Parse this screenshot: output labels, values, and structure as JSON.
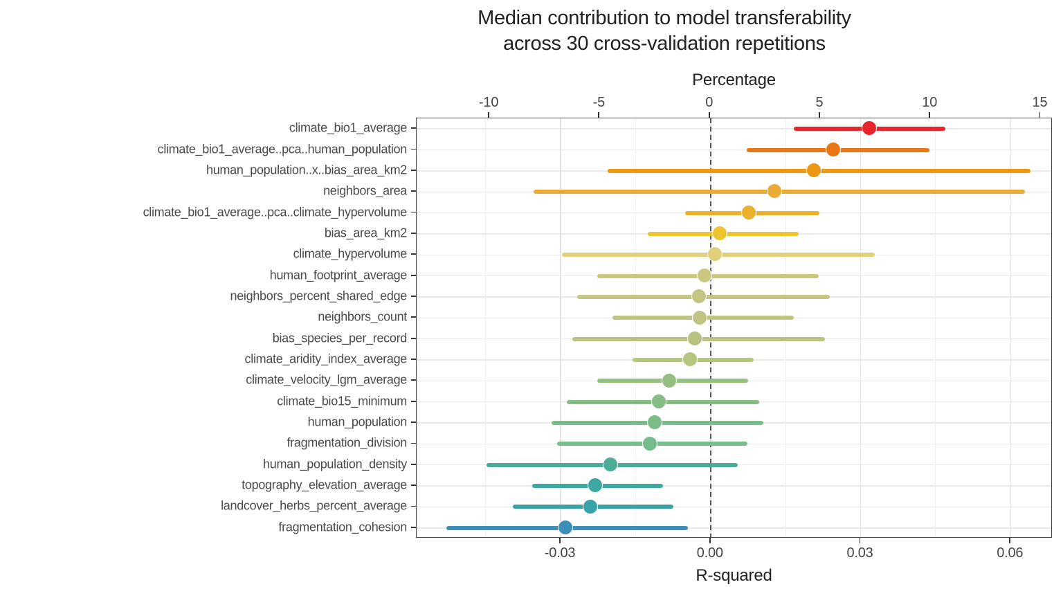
{
  "title": {
    "line1": "Median contribution to model transferability",
    "line2": "across 30 cross-validation repetitions"
  },
  "chart_data": {
    "type": "scatter",
    "subtype": "dot-with-horizontal-errorbar",
    "title": "Median contribution to model transferability across 30 cross-validation repetitions",
    "top_axis": {
      "label": "Percentage",
      "tick_labels": [
        "-10",
        "-5",
        "0",
        "5",
        "10",
        "15"
      ],
      "tick_values": [
        -10,
        -5,
        0,
        5,
        10,
        15
      ],
      "lim": [
        -13.3,
        15.55
      ]
    },
    "bottom_axis": {
      "label": "R-squared",
      "tick_labels": [
        "-0.03",
        "0.00",
        "0.03",
        "0.06"
      ],
      "tick_values": [
        -0.03,
        0,
        0.03,
        0.06
      ],
      "minor_tick_values": [
        -0.045,
        -0.015,
        0.015,
        0.045
      ],
      "lim": [
        -0.0588,
        0.0684
      ]
    },
    "zero_reference_line": 0,
    "grid": "on",
    "legend": "none",
    "series": [
      {
        "label": "climate_bio1_average",
        "median": 0.0319,
        "low": 0.0167,
        "high": 0.047,
        "color": "#E8252C"
      },
      {
        "label": "climate_bio1_average..pca..human_population",
        "median": 0.0246,
        "low": 0.0072,
        "high": 0.0437,
        "color": "#EA7713"
      },
      {
        "label": "human_population..x..bias_area_km2",
        "median": 0.0207,
        "low": -0.0206,
        "high": 0.064,
        "color": "#EC9815"
      },
      {
        "label": "neighbors_area",
        "median": 0.0129,
        "low": -0.0354,
        "high": 0.0628,
        "color": "#EAAB35"
      },
      {
        "label": "climate_bio1_average..pca..climate_hypervolume",
        "median": 0.0077,
        "low": -0.0051,
        "high": 0.0217,
        "color": "#EBB02C"
      },
      {
        "label": "bias_area_km2",
        "median": 0.002,
        "low": -0.0126,
        "high": 0.0176,
        "color": "#EDC42D"
      },
      {
        "label": "climate_hypervolume",
        "median": 0.001,
        "low": -0.0297,
        "high": 0.0328,
        "color": "#E2CF7B"
      },
      {
        "label": "human_footprint_average",
        "median": -0.0011,
        "low": -0.0227,
        "high": 0.0216,
        "color": "#CCC77E"
      },
      {
        "label": "neighbors_percent_shared_edge",
        "median": -0.0022,
        "low": -0.0267,
        "high": 0.0238,
        "color": "#C5C583"
      },
      {
        "label": "neighbors_count",
        "median": -0.0021,
        "low": -0.0196,
        "high": 0.0167,
        "color": "#C0C381"
      },
      {
        "label": "bias_species_per_record",
        "median": -0.003,
        "low": -0.0277,
        "high": 0.0228,
        "color": "#BBC083"
      },
      {
        "label": "climate_aridity_index_average",
        "median": -0.004,
        "low": -0.0156,
        "high": 0.0086,
        "color": "#B5C67E"
      },
      {
        "label": "climate_velocity_lgm_average",
        "median": -0.0082,
        "low": -0.0227,
        "high": 0.0075,
        "color": "#95BF7F"
      },
      {
        "label": "climate_bio15_minimum",
        "median": -0.0102,
        "low": -0.0288,
        "high": 0.0097,
        "color": "#85BD84"
      },
      {
        "label": "human_population",
        "median": -0.0111,
        "low": -0.0318,
        "high": 0.0106,
        "color": "#7CBC88"
      },
      {
        "label": "fragmentation_division",
        "median": -0.012,
        "low": -0.0307,
        "high": 0.0073,
        "color": "#76BC8C"
      },
      {
        "label": "human_population_density",
        "median": -0.0199,
        "low": -0.0448,
        "high": 0.0054,
        "color": "#4BAC97"
      },
      {
        "label": "topography_elevation_average",
        "median": -0.023,
        "low": -0.0357,
        "high": -0.0095,
        "color": "#3FA7A2"
      },
      {
        "label": "landcover_herbs_percent_average",
        "median": -0.0239,
        "low": -0.0395,
        "high": -0.0075,
        "color": "#38A2AB"
      },
      {
        "label": "fragmentation_cohesion",
        "median": -0.0289,
        "low": -0.0529,
        "high": -0.0046,
        "color": "#3D8FBA"
      }
    ]
  }
}
